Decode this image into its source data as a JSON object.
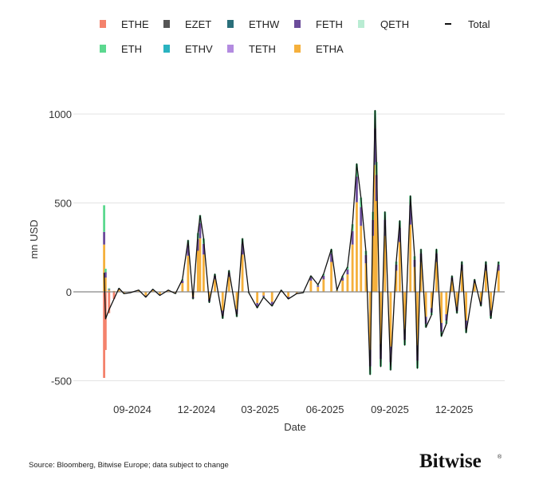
{
  "chart_data": {
    "type": "bar",
    "stacked": true,
    "xlabel": "Date",
    "ylabel": "mn USD",
    "ylim": [
      -500,
      1000
    ],
    "yticks": [
      "1000",
      "500",
      "0",
      "-500"
    ],
    "yticks_values": [
      1000,
      500,
      0,
      -500
    ],
    "xticks": [
      "09-2024",
      "12-2024",
      "03-2025",
      "06-2025",
      "09-2025",
      "12-2025"
    ],
    "xticks_dates": [
      "2024-09-01",
      "2024-12-01",
      "2025-03-01",
      "2025-06-01",
      "2025-09-01",
      "2025-12-01"
    ],
    "grid": true,
    "legend_position": "top",
    "legend": [
      {
        "name": "ETHE",
        "color": "#f4826c",
        "kind": "bar"
      },
      {
        "name": "EZET",
        "color": "#555555",
        "kind": "bar"
      },
      {
        "name": "ETHW",
        "color": "#2a6f7a",
        "kind": "bar"
      },
      {
        "name": "FETH",
        "color": "#6b4c9a",
        "kind": "bar"
      },
      {
        "name": "QETH",
        "color": "#b9ecd3",
        "kind": "bar"
      },
      {
        "name": "Total",
        "color": "#111111",
        "kind": "line"
      },
      {
        "name": "ETH",
        "color": "#5cd88f",
        "kind": "bar"
      },
      {
        "name": "ETHV",
        "color": "#2ab3c0",
        "kind": "bar"
      },
      {
        "name": "TETH",
        "color": "#b38be0",
        "kind": "bar"
      },
      {
        "name": "ETHA",
        "color": "#f5b03c",
        "kind": "bar"
      }
    ],
    "dates": [
      "2024-07-23",
      "2024-07-25",
      "2024-07-30",
      "2024-08-06",
      "2024-08-13",
      "2024-08-20",
      "2024-08-29",
      "2024-09-10",
      "2024-09-20",
      "2024-09-30",
      "2024-10-10",
      "2024-10-22",
      "2024-11-01",
      "2024-11-11",
      "2024-11-19",
      "2024-11-26",
      "2024-12-03",
      "2024-12-06",
      "2024-12-11",
      "2024-12-19",
      "2024-12-27",
      "2025-01-07",
      "2025-01-16",
      "2025-01-27",
      "2025-02-04",
      "2025-02-13",
      "2025-02-25",
      "2025-03-06",
      "2025-03-18",
      "2025-03-31",
      "2025-04-10",
      "2025-04-22",
      "2025-05-01",
      "2025-05-12",
      "2025-05-22",
      "2025-05-30",
      "2025-06-10",
      "2025-06-18",
      "2025-06-26",
      "2025-07-03",
      "2025-07-10",
      "2025-07-16",
      "2025-07-22",
      "2025-07-29",
      "2025-08-04",
      "2025-08-08",
      "2025-08-11",
      "2025-08-13",
      "2025-08-19",
      "2025-08-25",
      "2025-09-02",
      "2025-09-10",
      "2025-09-15",
      "2025-09-22",
      "2025-09-30",
      "2025-10-06",
      "2025-10-10",
      "2025-10-15",
      "2025-10-22",
      "2025-10-30",
      "2025-11-06",
      "2025-11-13",
      "2025-11-20",
      "2025-11-28",
      "2025-12-05",
      "2025-12-12",
      "2025-12-18",
      "2025-12-30",
      "2026-01-08",
      "2026-01-15",
      "2026-01-22",
      "2026-02-02"
    ],
    "series": [
      {
        "name": "ETHE",
        "values": [
          -484,
          -327,
          -120,
          -40,
          0,
          0,
          0,
          0,
          0,
          0,
          0,
          0,
          0,
          0,
          0,
          0,
          0,
          0,
          0,
          0,
          0,
          0,
          0,
          0,
          0,
          0,
          0,
          0,
          0,
          0,
          0,
          0,
          0,
          0,
          0,
          0,
          0,
          0,
          0,
          0,
          0,
          0,
          0,
          0,
          0,
          0,
          0,
          0,
          0,
          0,
          0,
          0,
          0,
          0,
          0,
          0,
          0,
          0,
          0,
          0,
          0,
          0,
          0,
          0,
          0,
          0,
          0,
          0,
          0,
          0,
          0,
          0
        ]
      },
      {
        "name": "ETHA",
        "values": [
          266,
          80,
          10,
          5,
          14,
          -7,
          -3,
          7,
          -21,
          10,
          -14,
          7,
          -7,
          49,
          203,
          -28,
          231,
          301,
          210,
          -42,
          70,
          -105,
          84,
          -98,
          210,
          -3,
          -63,
          -21,
          -56,
          7,
          -28,
          -7,
          -3,
          63,
          28,
          70,
          168,
          7,
          63,
          98,
          266,
          504,
          371,
          161,
          -326,
          315,
          714,
          511,
          -294,
          315,
          -308,
          119,
          280,
          -210,
          378,
          140,
          -301,
          168,
          -140,
          -91,
          168,
          -175,
          -126,
          63,
          -84,
          119,
          -161,
          49,
          -56,
          119,
          -105,
          119
        ]
      },
      {
        "name": "FETH",
        "values": [
          71,
          30,
          5,
          0,
          4,
          -2,
          -1,
          2,
          -6,
          3,
          -4,
          2,
          -2,
          14,
          58,
          -8,
          66,
          86,
          60,
          -12,
          20,
          -30,
          24,
          -28,
          60,
          -1,
          -18,
          -6,
          -16,
          2,
          -8,
          -2,
          -1,
          18,
          8,
          20,
          48,
          2,
          18,
          28,
          76,
          144,
          106,
          46,
          -93,
          90,
          204,
          146,
          -84,
          90,
          -88,
          34,
          80,
          -60,
          108,
          40,
          -86,
          48,
          -40,
          -26,
          48,
          -50,
          -36,
          18,
          -24,
          34,
          -46,
          14,
          -16,
          34,
          -30,
          34
        ]
      },
      {
        "name": "ETH",
        "values": [
          150,
          20,
          5,
          0,
          2,
          -1,
          -1,
          1,
          -3,
          2,
          -2,
          1,
          -1,
          7,
          29,
          -4,
          33,
          43,
          30,
          -6,
          10,
          -15,
          12,
          -14,
          30,
          -1,
          -9,
          -3,
          -8,
          1,
          -4,
          -1,
          -1,
          9,
          4,
          10,
          24,
          1,
          9,
          14,
          38,
          72,
          53,
          23,
          -46,
          45,
          102,
          73,
          -42,
          45,
          -44,
          17,
          40,
          -30,
          54,
          20,
          -43,
          24,
          -20,
          -13,
          24,
          -25,
          -18,
          9,
          -12,
          17,
          -23,
          7,
          -8,
          17,
          -15,
          17
        ]
      },
      {
        "name": "Total",
        "values": [
          107,
          -152,
          -100,
          -40,
          20,
          -10,
          -5,
          10,
          -30,
          15,
          -20,
          10,
          -10,
          70,
          290,
          -40,
          330,
          430,
          300,
          -60,
          100,
          -150,
          120,
          -140,
          300,
          -5,
          -90,
          -30,
          -80,
          10,
          -40,
          -10,
          -5,
          90,
          40,
          100,
          240,
          10,
          90,
          140,
          380,
          720,
          530,
          230,
          -465,
          450,
          1020,
          730,
          -420,
          450,
          -440,
          170,
          400,
          -300,
          540,
          200,
          -430,
          240,
          -200,
          -130,
          240,
          -250,
          -180,
          90,
          -120,
          170,
          -230,
          70,
          -80,
          170,
          -150,
          170
        ]
      }
    ]
  },
  "footer": {
    "source": "Source: Bloomberg, Bitwise Europe; data subject to change",
    "logo": "Bitwise"
  }
}
